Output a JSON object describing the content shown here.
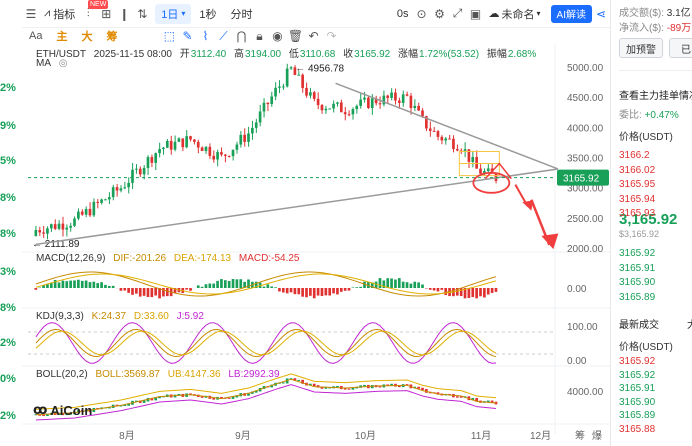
{
  "left_strip": [
    {
      "text": "2%",
      "color": "#18a058"
    },
    {
      "text": "9%",
      "color": "#18a058"
    },
    {
      "text": "5%",
      "color": "#18a058"
    },
    {
      "text": "8%",
      "color": "#18a058"
    },
    {
      "text": "8%",
      "color": "#18a058"
    },
    {
      "text": "3%",
      "color": "#18a058"
    },
    {
      "text": "8%",
      "color": "#18a058"
    },
    {
      "text": "2%",
      "color": "#18a058"
    },
    {
      "text": "0%",
      "color": "#18a058"
    },
    {
      "text": "2%",
      "color": "#18a058"
    }
  ],
  "toolbar": {
    "indicator_label": "指标",
    "new_badge": "NEW",
    "interval": "1日",
    "one_sec": "1秒",
    "time_share": "分时",
    "zero_s": "0s",
    "unnamed": "未命名",
    "ai": "AI解读"
  },
  "draw_row": {
    "aa": "Aa",
    "items": [
      "主",
      "大",
      "筹"
    ]
  },
  "legend": {
    "symbol": "ETH/USDT",
    "datetime": "2025-11-15 08:00",
    "open_label": "开",
    "open": "3112.40",
    "high_label": "高",
    "high": "3194.00",
    "low_label": "低",
    "low": "3110.68",
    "close_label": "收",
    "close": "3165.92",
    "change_label": "涨幅",
    "change": "1.72%(53.52)",
    "amp_label": "振幅",
    "amp": "2.68%",
    "ma": "MA",
    "high_mark": "4956.78",
    "low_mark": "2111.89"
  },
  "macd": {
    "title": "MACD(12,26,9)",
    "dif": "DIF:-201.26",
    "dea": "DEA:-174.13",
    "macd": "MACD:-54.25"
  },
  "kdj": {
    "title": "KDJ(9,3,3)",
    "k": "K:24.37",
    "d": "D:33.60",
    "j": "J:5.92"
  },
  "boll": {
    "title": "BOLL(20,2)",
    "boll": "BOLL:3569.87",
    "ub": "UB:4147.36",
    "lb": "LB:2992.39"
  },
  "watermark": "AiCoin",
  "price_axis": [
    "5000.00",
    "4500.00",
    "4000.00",
    "3500.00",
    "3000.00",
    "2500.00",
    "2000.00"
  ],
  "current_price_tag": "3165.92",
  "macd_axis": [
    "0.00"
  ],
  "kdj_axis": [
    "100.00",
    "0.00"
  ],
  "boll_axis": [
    "4000.00"
  ],
  "time_axis": [
    "8月",
    "9月",
    "10月",
    "11月",
    "12月"
  ],
  "bottom_right": [
    "筹",
    "爆"
  ],
  "right_panel": {
    "vol_label": "成交额($):",
    "vol_value": "3.1亿",
    "inflow_label": "净流入($):",
    "inflow_value": "-89万",
    "add_alert": "加预警",
    "add_other": "已",
    "orderbook_title": "查看主力挂单情况",
    "commission_label": "委比:",
    "commission_value": "+0.47%",
    "price_header": "价格(USDT)",
    "asks": [
      "3166.2",
      "3166.02",
      "3165.95",
      "3165.94",
      "3165.93"
    ],
    "last_price": "3,165.92",
    "last_price_sub": "$3,165.92",
    "bids": [
      "3165.92",
      "3165.91",
      "3165.90",
      "3165.89"
    ],
    "latest_trades_tab": "最新成交",
    "other_tab": "大",
    "trades_header": "价格(USDT)",
    "trades": [
      {
        "p": "3165.92",
        "c": "red"
      },
      {
        "p": "3165.92",
        "c": "green"
      },
      {
        "p": "3165.91",
        "c": "green"
      },
      {
        "p": "3165.90",
        "c": "green"
      },
      {
        "p": "3165.89",
        "c": "green"
      },
      {
        "p": "3165.88",
        "c": "red"
      }
    ]
  },
  "colors": {
    "up": "#18a058",
    "down": "#e03131",
    "accent": "#1a6dff",
    "triangle": "#9a9a9a",
    "arrow": "#f03e3e"
  }
}
